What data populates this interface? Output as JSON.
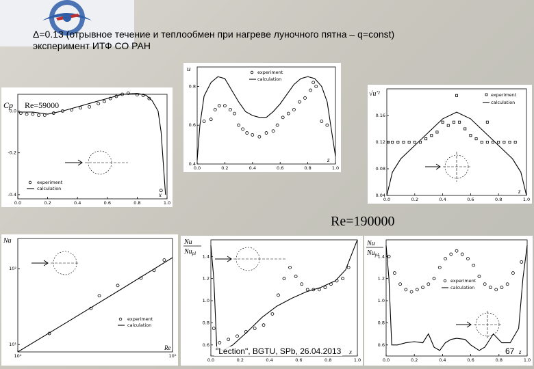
{
  "slide": {
    "title_line1": "Δ=0.13 (отрывное течение и теплообмен при нагреве луночного пятна – q=const)",
    "title_line2": "эксперимент ИТФ СО РАН",
    "re_label": "Re=190000",
    "footer": "\"Lection\", BGTU, SPb, 26.04.2013",
    "page_number": "67"
  },
  "legend": {
    "experiment": "experiment",
    "calculation": "calculation"
  },
  "colors": {
    "background": "#c8c6bd",
    "panel": "#ffffff",
    "logo_blue": "#2f5da8"
  },
  "chart_data": [
    {
      "id": "cp",
      "type": "scatter",
      "ylabel": "Cp",
      "annotation": "Re=59000",
      "xlabel": "x",
      "xlim": [
        0,
        1.0
      ],
      "ylim": [
        -0.42,
        0.08
      ],
      "xticks": [
        "0.0",
        "0.2",
        "0.4",
        "0.6",
        "0.8",
        "1.0"
      ],
      "yticks": [
        "-0.4",
        "-0.2",
        "0.0"
      ],
      "experiment": [
        [
          0.02,
          -0.01
        ],
        [
          0.06,
          -0.015
        ],
        [
          0.1,
          -0.015
        ],
        [
          0.14,
          -0.02
        ],
        [
          0.18,
          -0.02
        ],
        [
          0.24,
          -0.01
        ],
        [
          0.3,
          0.0
        ],
        [
          0.36,
          0.005
        ],
        [
          0.42,
          0.015
        ],
        [
          0.48,
          0.02
        ],
        [
          0.54,
          0.035
        ],
        [
          0.58,
          0.045
        ],
        [
          0.62,
          0.06
        ],
        [
          0.66,
          0.07
        ],
        [
          0.7,
          0.08
        ],
        [
          0.74,
          0.085
        ],
        [
          0.8,
          0.078
        ],
        [
          0.84,
          0.075
        ],
        [
          0.88,
          0.06
        ],
        [
          0.96,
          -0.38
        ]
      ],
      "calculation": [
        [
          0.0,
          -0.005
        ],
        [
          0.1,
          -0.005
        ],
        [
          0.2,
          -0.015
        ],
        [
          0.3,
          0.0
        ],
        [
          0.4,
          0.02
        ],
        [
          0.5,
          0.04
        ],
        [
          0.6,
          0.06
        ],
        [
          0.7,
          0.08
        ],
        [
          0.8,
          0.085
        ],
        [
          0.86,
          0.075
        ],
        [
          0.9,
          0.05
        ],
        [
          0.94,
          0.0
        ],
        [
          0.96,
          -0.1
        ],
        [
          0.98,
          -0.3
        ],
        [
          0.99,
          -0.4
        ]
      ]
    },
    {
      "id": "u",
      "type": "scatter",
      "ylabel": "u",
      "xlabel": "z",
      "xlim": [
        0,
        1.0
      ],
      "ylim": [
        0.4,
        0.9
      ],
      "xticks": [
        "0.0",
        "0.2",
        "0.4",
        "0.6",
        "0.8",
        "1.0"
      ],
      "yticks": [
        "0.4",
        "0.6",
        "0.8"
      ],
      "experiment": [
        [
          0.05,
          0.62
        ],
        [
          0.1,
          0.63
        ],
        [
          0.13,
          0.68
        ],
        [
          0.16,
          0.7
        ],
        [
          0.2,
          0.7
        ],
        [
          0.24,
          0.68
        ],
        [
          0.27,
          0.66
        ],
        [
          0.3,
          0.6
        ],
        [
          0.33,
          0.58
        ],
        [
          0.36,
          0.56
        ],
        [
          0.4,
          0.55
        ],
        [
          0.45,
          0.54
        ],
        [
          0.5,
          0.56
        ],
        [
          0.55,
          0.57
        ],
        [
          0.58,
          0.6
        ],
        [
          0.62,
          0.64
        ],
        [
          0.66,
          0.66
        ],
        [
          0.7,
          0.68
        ],
        [
          0.74,
          0.72
        ],
        [
          0.78,
          0.74
        ],
        [
          0.82,
          0.78
        ],
        [
          0.84,
          0.82
        ],
        [
          0.86,
          0.8
        ],
        [
          0.9,
          0.62
        ],
        [
          0.94,
          0.6
        ]
      ],
      "calculation": [
        [
          0.0,
          0.42
        ],
        [
          0.02,
          0.6
        ],
        [
          0.05,
          0.75
        ],
        [
          0.1,
          0.82
        ],
        [
          0.15,
          0.85
        ],
        [
          0.2,
          0.84
        ],
        [
          0.25,
          0.78
        ],
        [
          0.3,
          0.72
        ],
        [
          0.35,
          0.67
        ],
        [
          0.4,
          0.65
        ],
        [
          0.45,
          0.64
        ],
        [
          0.5,
          0.64
        ],
        [
          0.55,
          0.67
        ],
        [
          0.6,
          0.71
        ],
        [
          0.65,
          0.76
        ],
        [
          0.7,
          0.81
        ],
        [
          0.75,
          0.84
        ],
        [
          0.8,
          0.85
        ],
        [
          0.85,
          0.84
        ],
        [
          0.9,
          0.8
        ],
        [
          0.94,
          0.72
        ],
        [
          0.97,
          0.58
        ],
        [
          1.0,
          0.44
        ]
      ]
    },
    {
      "id": "urms",
      "type": "scatter",
      "ylabel": "√u'²",
      "xlabel": "z",
      "xlim": [
        0,
        1.0
      ],
      "ylim": [
        0.04,
        0.2
      ],
      "xticks": [
        "0.0",
        "0.2",
        "0.4",
        "0.6",
        "0.8",
        "1.0"
      ],
      "yticks": [
        "0.04",
        "0.08",
        "0.12",
        "0.16"
      ],
      "experiment": [
        [
          0.01,
          0.12
        ],
        [
          0.04,
          0.12
        ],
        [
          0.08,
          0.12
        ],
        [
          0.12,
          0.12
        ],
        [
          0.16,
          0.12
        ],
        [
          0.2,
          0.12
        ],
        [
          0.24,
          0.12
        ],
        [
          0.28,
          0.125
        ],
        [
          0.32,
          0.13
        ],
        [
          0.36,
          0.135
        ],
        [
          0.4,
          0.15
        ],
        [
          0.44,
          0.145
        ],
        [
          0.48,
          0.15
        ],
        [
          0.52,
          0.15
        ],
        [
          0.56,
          0.14
        ],
        [
          0.6,
          0.13
        ],
        [
          0.64,
          0.125
        ],
        [
          0.68,
          0.12
        ],
        [
          0.72,
          0.12
        ],
        [
          0.76,
          0.12
        ],
        [
          0.8,
          0.12
        ],
        [
          0.84,
          0.12
        ],
        [
          0.88,
          0.12
        ],
        [
          0.92,
          0.12
        ],
        [
          0.5,
          0.19
        ],
        [
          0.72,
          0.15
        ]
      ],
      "calculation": [
        [
          0.0,
          0.04
        ],
        [
          0.04,
          0.075
        ],
        [
          0.1,
          0.095
        ],
        [
          0.2,
          0.115
        ],
        [
          0.3,
          0.135
        ],
        [
          0.4,
          0.155
        ],
        [
          0.5,
          0.165
        ],
        [
          0.6,
          0.155
        ],
        [
          0.7,
          0.135
        ],
        [
          0.8,
          0.115
        ],
        [
          0.9,
          0.095
        ],
        [
          0.96,
          0.075
        ],
        [
          1.0,
          0.04
        ]
      ]
    },
    {
      "id": "nu_re",
      "type": "scatter",
      "ylabel": "Nu",
      "xlabel": "Re",
      "xscale": "log",
      "yscale": "log",
      "xlim": [
        10000,
        300000
      ],
      "ylim": [
        8,
        250
      ],
      "xticks": [
        "10⁴",
        "10⁵"
      ],
      "yticks": [
        "10¹",
        "10²"
      ],
      "experiment": [
        [
          20000,
          14
        ],
        [
          50000,
          30
        ],
        [
          60000,
          44
        ],
        [
          90000,
          60
        ],
        [
          150000,
          75
        ],
        [
          200000,
          95
        ],
        [
          250000,
          130
        ]
      ],
      "calculation": [
        [
          10000,
          8
        ],
        [
          30000,
          20
        ],
        [
          100000,
          55
        ],
        [
          300000,
          140
        ]
      ]
    },
    {
      "id": "nu_ratio_x",
      "type": "scatter",
      "ylabel": "Nu/Nu_pl",
      "xlabel": "x",
      "xlim": [
        0,
        1.0
      ],
      "ylim": [
        0.5,
        1.55
      ],
      "xticks": [
        "0.0",
        "0.2",
        "0.4",
        "0.6",
        "0.8",
        "1.0"
      ],
      "yticks": [
        "0.6",
        "0.8",
        "1.0",
        "1.2",
        "1.4"
      ],
      "experiment": [
        [
          0.02,
          0.75
        ],
        [
          0.06,
          0.62
        ],
        [
          0.12,
          0.65
        ],
        [
          0.18,
          0.68
        ],
        [
          0.24,
          0.72
        ],
        [
          0.3,
          0.75
        ],
        [
          0.36,
          0.78
        ],
        [
          0.42,
          0.88
        ],
        [
          0.46,
          1.05
        ],
        [
          0.5,
          1.2
        ],
        [
          0.54,
          1.3
        ],
        [
          0.58,
          1.22
        ],
        [
          0.62,
          1.15
        ],
        [
          0.66,
          1.1
        ],
        [
          0.7,
          1.1
        ],
        [
          0.74,
          1.1
        ],
        [
          0.78,
          1.12
        ],
        [
          0.82,
          1.15
        ],
        [
          0.86,
          1.18
        ],
        [
          0.9,
          1.2
        ],
        [
          0.94,
          1.3
        ]
      ],
      "calculation": [
        [
          0.0,
          1.5
        ],
        [
          0.02,
          1.2
        ],
        [
          0.04,
          0.58
        ],
        [
          0.08,
          0.55
        ],
        [
          0.15,
          0.6
        ],
        [
          0.25,
          0.72
        ],
        [
          0.35,
          0.85
        ],
        [
          0.45,
          0.95
        ],
        [
          0.55,
          1.02
        ],
        [
          0.65,
          1.08
        ],
        [
          0.75,
          1.12
        ],
        [
          0.85,
          1.18
        ],
        [
          0.92,
          1.28
        ],
        [
          0.97,
          1.45
        ],
        [
          1.0,
          1.55
        ]
      ]
    },
    {
      "id": "nu_ratio_z",
      "type": "scatter",
      "ylabel": "Nu/Nu_pl",
      "xlabel": "z",
      "xlim": [
        0,
        1.0
      ],
      "ylim": [
        0.5,
        1.55
      ],
      "xticks": [
        "0.0",
        "0.2",
        "0.4",
        "0.6",
        "0.8",
        "1.0"
      ],
      "yticks": [
        "0.6",
        "0.8",
        "1.0",
        "1.2",
        "1.4"
      ],
      "experiment": [
        [
          0.02,
          1.4
        ],
        [
          0.06,
          1.25
        ],
        [
          0.1,
          1.15
        ],
        [
          0.14,
          1.1
        ],
        [
          0.18,
          1.08
        ],
        [
          0.22,
          1.1
        ],
        [
          0.26,
          1.12
        ],
        [
          0.3,
          1.15
        ],
        [
          0.34,
          1.2
        ],
        [
          0.38,
          1.3
        ],
        [
          0.42,
          1.38
        ],
        [
          0.46,
          1.42
        ],
        [
          0.5,
          1.45
        ],
        [
          0.54,
          1.42
        ],
        [
          0.58,
          1.38
        ],
        [
          0.62,
          1.32
        ],
        [
          0.66,
          1.22
        ],
        [
          0.7,
          1.15
        ],
        [
          0.74,
          1.12
        ],
        [
          0.78,
          1.1
        ],
        [
          0.82,
          1.12
        ],
        [
          0.86,
          1.15
        ],
        [
          0.9,
          1.25
        ],
        [
          0.96,
          1.35
        ]
      ],
      "calculation": [
        [
          0.0,
          1.5
        ],
        [
          0.02,
          1.2
        ],
        [
          0.04,
          0.6
        ],
        [
          0.08,
          0.6
        ],
        [
          0.14,
          0.62
        ],
        [
          0.2,
          0.63
        ],
        [
          0.26,
          0.62
        ],
        [
          0.3,
          0.7
        ],
        [
          0.34,
          0.58
        ],
        [
          0.38,
          0.55
        ],
        [
          0.42,
          0.62
        ],
        [
          0.46,
          0.65
        ],
        [
          0.5,
          0.66
        ],
        [
          0.56,
          0.65
        ],
        [
          0.6,
          0.6
        ],
        [
          0.66,
          0.55
        ],
        [
          0.7,
          0.58
        ],
        [
          0.76,
          0.7
        ],
        [
          0.82,
          0.62
        ],
        [
          0.88,
          0.62
        ],
        [
          0.94,
          0.75
        ],
        [
          0.97,
          1.2
        ],
        [
          1.0,
          1.5
        ]
      ]
    }
  ]
}
